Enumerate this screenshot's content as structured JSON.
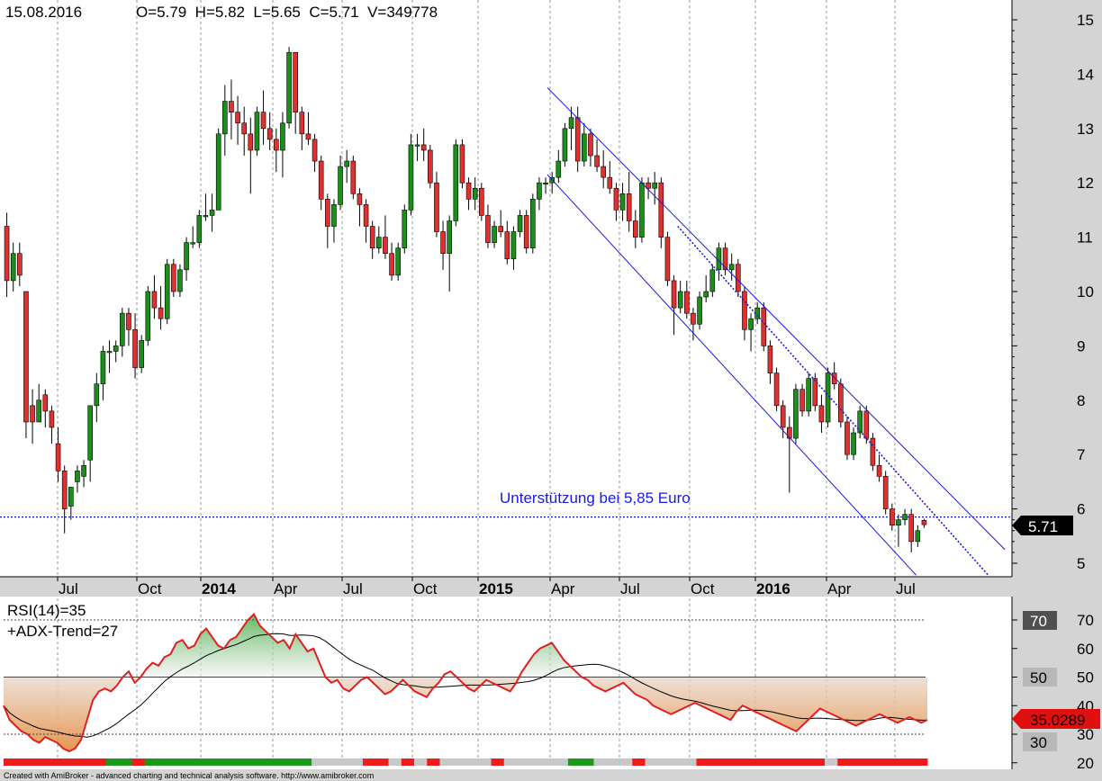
{
  "header": {
    "date": "15.08.2016",
    "ohlcv": "O=5.79  H=5.82  L=5.65  C=5.71  V=349778"
  },
  "annotation": "Unterstützung bei 5,85 Euro",
  "current_price_label": "5.71",
  "rsi": {
    "title": "RSI(14)=35",
    "subtitle": "+ADX-Trend=27",
    "current_label": "35.0289",
    "band_labels": [
      "70",
      "50",
      "30"
    ]
  },
  "footer": "Created with AmiBroker - advanced charting and technical analysis software. http://www.amibroker.com",
  "colors": {
    "up": "#1a8f1a",
    "down": "#e03030",
    "channel": "#1a1adc",
    "rsi_line": "#e02020",
    "rsi_fill_high": "#2ea02e",
    "rsi_fill_low": "#e58a3c",
    "axis_bg": "#d4d4d4",
    "price_flag": "#000000",
    "rsi_flag": "#e01010"
  },
  "chart_data": [
    {
      "type": "candlestick",
      "y_axis_ticks": [
        5,
        6,
        7,
        8,
        9,
        10,
        11,
        12,
        13,
        14,
        15
      ],
      "ylim": [
        4.8,
        15.4
      ],
      "x_tick_labels": [
        "Jul",
        "Oct",
        "2014",
        "Apr",
        "Jul",
        "Oct",
        "2015",
        "Apr",
        "Jul",
        "Oct",
        "2016",
        "Apr",
        "Jul"
      ],
      "x_tick_bold": [
        false,
        false,
        true,
        false,
        false,
        false,
        true,
        false,
        false,
        false,
        true,
        false,
        false
      ],
      "support_level": 5.85,
      "channel": {
        "upper": [
          [
            2015.25,
            13.75
          ],
          [
            2016.9,
            5.25
          ]
        ],
        "lower": [
          [
            2015.25,
            12.15
          ],
          [
            2016.58,
            4.78
          ]
        ],
        "middle": [
          [
            2015.72,
            11.2
          ],
          [
            2016.84,
            4.78
          ]
        ]
      },
      "candles": [
        [
          11.2,
          11.45,
          9.9,
          10.2
        ],
        [
          10.2,
          10.9,
          10.0,
          10.7
        ],
        [
          10.7,
          10.9,
          10.1,
          10.3
        ],
        [
          10.0,
          10.0,
          7.3,
          7.6
        ],
        [
          7.9,
          8.2,
          7.2,
          7.6
        ],
        [
          7.6,
          8.3,
          7.6,
          8.0
        ],
        [
          8.1,
          8.2,
          7.5,
          7.8
        ],
        [
          7.8,
          7.9,
          7.2,
          7.5
        ],
        [
          7.2,
          7.5,
          6.5,
          6.7
        ],
        [
          6.7,
          6.8,
          5.55,
          6.0
        ],
        [
          6.05,
          6.4,
          5.8,
          6.4
        ],
        [
          6.5,
          6.8,
          6.3,
          6.7
        ],
        [
          6.6,
          6.9,
          6.4,
          6.8
        ],
        [
          6.9,
          7.9,
          6.5,
          7.9
        ],
        [
          7.9,
          8.5,
          7.6,
          8.3
        ],
        [
          8.3,
          9.0,
          8.0,
          8.9
        ],
        [
          8.9,
          9.1,
          8.5,
          8.9
        ],
        [
          8.9,
          9.1,
          8.7,
          9.0
        ],
        [
          9.0,
          9.7,
          8.8,
          9.6
        ],
        [
          9.6,
          9.7,
          9.0,
          9.3
        ],
        [
          9.3,
          9.6,
          8.4,
          8.6
        ],
        [
          8.6,
          9.2,
          8.5,
          9.1
        ],
        [
          9.1,
          10.1,
          9.0,
          10.0
        ],
        [
          10.0,
          10.3,
          9.5,
          9.7
        ],
        [
          9.7,
          10.1,
          9.3,
          9.5
        ],
        [
          9.5,
          10.6,
          9.4,
          10.5
        ],
        [
          10.5,
          10.6,
          9.9,
          10.0
        ],
        [
          10.0,
          10.5,
          9.9,
          10.4
        ],
        [
          10.4,
          11.0,
          10.2,
          10.9
        ],
        [
          10.9,
          11.2,
          10.8,
          10.9
        ],
        [
          10.9,
          11.5,
          10.8,
          11.4
        ],
        [
          11.4,
          11.8,
          11.3,
          11.4
        ],
        [
          11.4,
          11.8,
          11.1,
          11.5
        ],
        [
          11.5,
          13.0,
          11.5,
          12.9
        ],
        [
          12.9,
          13.8,
          12.5,
          13.5
        ],
        [
          13.5,
          13.9,
          12.8,
          13.3
        ],
        [
          13.3,
          13.6,
          12.7,
          13.1
        ],
        [
          13.1,
          13.4,
          12.5,
          12.9
        ],
        [
          12.9,
          13.2,
          11.8,
          12.6
        ],
        [
          12.6,
          13.4,
          12.5,
          13.3
        ],
        [
          13.3,
          13.7,
          12.7,
          13.0
        ],
        [
          13.0,
          13.3,
          12.6,
          12.8
        ],
        [
          12.8,
          13.0,
          12.2,
          12.6
        ],
        [
          12.6,
          13.3,
          12.1,
          13.1
        ],
        [
          13.1,
          14.5,
          13.0,
          14.4
        ],
        [
          14.4,
          14.4,
          12.9,
          13.3
        ],
        [
          13.3,
          13.4,
          12.6,
          12.9
        ],
        [
          12.9,
          13.3,
          12.7,
          12.8
        ],
        [
          12.8,
          12.9,
          12.2,
          12.4
        ],
        [
          12.4,
          12.5,
          11.5,
          11.7
        ],
        [
          11.7,
          11.8,
          10.8,
          11.2
        ],
        [
          11.2,
          11.7,
          10.9,
          11.6
        ],
        [
          11.6,
          12.5,
          11.5,
          12.3
        ],
        [
          12.3,
          12.6,
          12.0,
          12.4
        ],
        [
          12.4,
          12.5,
          11.7,
          11.8
        ],
        [
          11.8,
          11.9,
          11.2,
          11.6
        ],
        [
          11.6,
          11.7,
          10.9,
          11.2
        ],
        [
          11.2,
          11.3,
          10.6,
          10.8
        ],
        [
          10.8,
          11.2,
          10.7,
          11.0
        ],
        [
          11.0,
          11.4,
          10.6,
          10.7
        ],
        [
          10.7,
          10.9,
          10.2,
          10.3
        ],
        [
          10.3,
          10.9,
          10.2,
          10.8
        ],
        [
          10.8,
          11.6,
          10.7,
          11.5
        ],
        [
          11.5,
          12.9,
          11.4,
          12.7
        ],
        [
          12.7,
          12.9,
          12.4,
          12.7
        ],
        [
          12.7,
          13.0,
          12.4,
          12.6
        ],
        [
          12.6,
          12.7,
          11.9,
          12.0
        ],
        [
          12.0,
          12.2,
          11.0,
          11.1
        ],
        [
          11.1,
          11.3,
          10.4,
          10.7
        ],
        [
          10.7,
          11.4,
          10.0,
          11.3
        ],
        [
          11.3,
          12.8,
          11.2,
          12.7
        ],
        [
          12.7,
          12.8,
          11.9,
          12.0
        ],
        [
          12.0,
          12.1,
          11.5,
          11.7
        ],
        [
          11.7,
          12.1,
          11.5,
          11.9
        ],
        [
          11.9,
          12.0,
          11.3,
          11.4
        ],
        [
          11.4,
          11.6,
          10.8,
          10.9
        ],
        [
          10.9,
          11.3,
          10.8,
          11.2
        ],
        [
          11.2,
          11.5,
          11.0,
          11.1
        ],
        [
          11.1,
          11.3,
          10.5,
          10.6
        ],
        [
          10.6,
          11.2,
          10.4,
          11.1
        ],
        [
          11.1,
          11.5,
          11.0,
          11.4
        ],
        [
          11.4,
          11.5,
          10.7,
          10.8
        ],
        [
          10.8,
          11.8,
          10.7,
          11.7
        ],
        [
          11.7,
          12.1,
          11.5,
          12.0
        ],
        [
          12.0,
          12.1,
          11.8,
          12.0
        ],
        [
          12.0,
          12.2,
          11.8,
          12.1
        ],
        [
          12.1,
          12.6,
          12.0,
          12.4
        ],
        [
          12.4,
          13.1,
          12.3,
          13.0
        ],
        [
          13.0,
          13.4,
          12.6,
          13.2
        ],
        [
          13.2,
          13.4,
          12.2,
          12.4
        ],
        [
          12.4,
          13.1,
          12.3,
          12.9
        ],
        [
          12.9,
          13.0,
          12.3,
          12.5
        ],
        [
          12.5,
          12.8,
          12.2,
          12.3
        ],
        [
          12.3,
          12.6,
          11.9,
          12.1
        ],
        [
          12.1,
          12.4,
          11.8,
          11.9
        ],
        [
          11.9,
          12.0,
          11.3,
          11.5
        ],
        [
          11.5,
          12.0,
          11.3,
          11.8
        ],
        [
          11.8,
          12.2,
          11.1,
          11.3
        ],
        [
          11.3,
          11.5,
          10.8,
          11.0
        ],
        [
          11.0,
          12.1,
          10.9,
          12.0
        ],
        [
          12.0,
          12.1,
          11.7,
          11.9
        ],
        [
          11.9,
          12.2,
          11.6,
          12.0
        ],
        [
          12.0,
          12.1,
          10.8,
          11.0
        ],
        [
          11.0,
          11.1,
          10.1,
          10.2
        ],
        [
          10.2,
          10.3,
          9.2,
          9.7
        ],
        [
          9.7,
          10.2,
          9.6,
          10.0
        ],
        [
          10.0,
          10.2,
          9.5,
          9.6
        ],
        [
          9.6,
          9.7,
          9.1,
          9.4
        ],
        [
          9.4,
          10.0,
          9.3,
          9.9
        ],
        [
          9.9,
          10.3,
          9.8,
          10.0
        ],
        [
          10.0,
          10.5,
          9.9,
          10.4
        ],
        [
          10.4,
          10.9,
          10.2,
          10.8
        ],
        [
          10.8,
          10.9,
          10.3,
          10.4
        ],
        [
          10.4,
          10.7,
          10.2,
          10.5
        ],
        [
          10.5,
          10.6,
          9.9,
          10.0
        ],
        [
          10.0,
          10.1,
          9.1,
          9.3
        ],
        [
          9.3,
          9.6,
          8.9,
          9.5
        ],
        [
          9.5,
          9.8,
          9.4,
          9.7
        ],
        [
          9.7,
          9.8,
          8.9,
          9.0
        ],
        [
          9.0,
          9.1,
          8.3,
          8.5
        ],
        [
          8.5,
          8.6,
          7.8,
          7.9
        ],
        [
          7.9,
          8.0,
          7.3,
          7.5
        ],
        [
          7.5,
          7.7,
          6.3,
          7.3
        ],
        [
          7.3,
          8.3,
          7.2,
          8.2
        ],
        [
          8.2,
          8.3,
          7.7,
          7.8
        ],
        [
          7.8,
          8.5,
          7.7,
          8.4
        ],
        [
          8.4,
          8.5,
          7.8,
          7.9
        ],
        [
          7.9,
          8.1,
          7.4,
          7.6
        ],
        [
          7.6,
          8.6,
          7.5,
          8.5
        ],
        [
          8.5,
          8.7,
          8.2,
          8.3
        ],
        [
          8.3,
          8.4,
          7.5,
          7.6
        ],
        [
          7.6,
          7.7,
          6.9,
          7.0
        ],
        [
          7.0,
          7.5,
          6.9,
          7.4
        ],
        [
          7.4,
          7.9,
          7.3,
          7.8
        ],
        [
          7.8,
          7.9,
          7.2,
          7.3
        ],
        [
          7.3,
          7.4,
          6.7,
          6.8
        ],
        [
          6.8,
          7.0,
          6.5,
          6.6
        ],
        [
          6.6,
          6.7,
          5.9,
          6.0
        ],
        [
          6.0,
          6.1,
          5.6,
          5.7
        ],
        [
          5.7,
          5.9,
          5.3,
          5.8
        ],
        [
          5.8,
          6.0,
          5.7,
          5.9
        ],
        [
          5.9,
          6.0,
          5.2,
          5.4
        ],
        [
          5.4,
          5.7,
          5.3,
          5.6
        ],
        [
          5.79,
          5.82,
          5.65,
          5.71
        ]
      ]
    },
    {
      "type": "line",
      "title": "RSI(14)",
      "y_axis_ticks": [
        20,
        30,
        40,
        50,
        60,
        70
      ],
      "ylim": [
        17,
        73
      ],
      "reference_lines": [
        70,
        50,
        30
      ],
      "current_value": 35.0289,
      "rsi": [
        40,
        35,
        33,
        31,
        30,
        28,
        27,
        29,
        28,
        27,
        25,
        24,
        25,
        28,
        35,
        42,
        45,
        46,
        45,
        47,
        50,
        52,
        48,
        50,
        53,
        55,
        54,
        57,
        58,
        62,
        63,
        60,
        61,
        65,
        67,
        64,
        61,
        60,
        63,
        64,
        67,
        70,
        72,
        68,
        66,
        64,
        62,
        63,
        60,
        65,
        62,
        59,
        60,
        55,
        50,
        48,
        49,
        46,
        45,
        47,
        49,
        50,
        48,
        46,
        44,
        45,
        47,
        49,
        47,
        45,
        44,
        43,
        46,
        48,
        51,
        52,
        50,
        48,
        46,
        45,
        47,
        49,
        48,
        47,
        46,
        45,
        48,
        52,
        55,
        58,
        60,
        61,
        62,
        59,
        56,
        54,
        52,
        50,
        49,
        47,
        46,
        45,
        46,
        47,
        48,
        46,
        44,
        43,
        42,
        40,
        39,
        38,
        37,
        38,
        39,
        40,
        41,
        40,
        39,
        38,
        37,
        36,
        35,
        38,
        40,
        39,
        38,
        37,
        36,
        35,
        34,
        33,
        32,
        31,
        33,
        35,
        37,
        39,
        38,
        37,
        36,
        35,
        34,
        33,
        34,
        35,
        36,
        37,
        36,
        35,
        34,
        35,
        36,
        35,
        34,
        35
      ],
      "adx_trend_value": 27
    }
  ],
  "trend_bar": [
    "down",
    "down",
    "down",
    "down",
    "down",
    "down",
    "down",
    "down",
    "up",
    "up",
    "down",
    "up",
    "up",
    "up",
    "up",
    "up",
    "up",
    "up",
    "up",
    "up",
    "up",
    "up",
    "up",
    "up",
    "neutral",
    "neutral",
    "neutral",
    "neutral",
    "down",
    "down",
    "neutral",
    "down",
    "neutral",
    "down",
    "neutral",
    "neutral",
    "neutral",
    "neutral",
    "down",
    "neutral",
    "neutral",
    "neutral",
    "neutral",
    "neutral",
    "up",
    "up",
    "neutral",
    "neutral",
    "neutral",
    "down",
    "neutral",
    "neutral",
    "neutral",
    "neutral",
    "down",
    "down",
    "down",
    "down",
    "down",
    "down",
    "down",
    "down",
    "down",
    "down",
    "neutral",
    "down",
    "down",
    "down",
    "down",
    "down",
    "down",
    "down"
  ]
}
